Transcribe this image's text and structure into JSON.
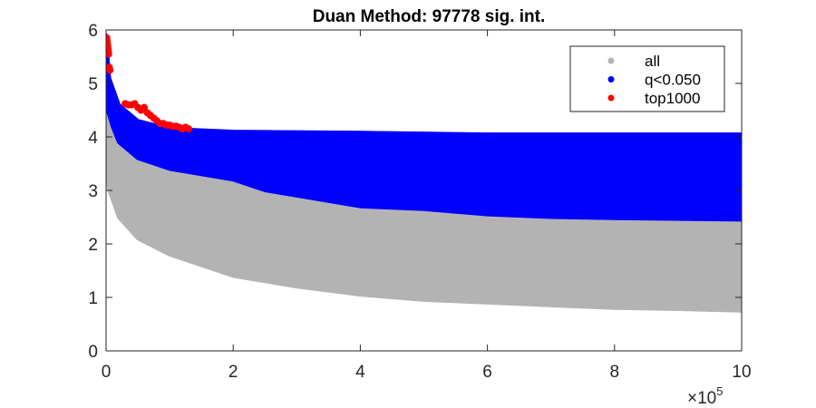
{
  "chart_data": {
    "type": "scatter",
    "title": "Duan Method: 97778 sig. int.",
    "xlabel": "",
    "ylabel": "",
    "xlim": [
      0,
      1000000
    ],
    "ylim": [
      0,
      6
    ],
    "x_ticks": [
      0,
      200000,
      400000,
      600000,
      800000,
      1000000
    ],
    "x_tick_labels": [
      "0",
      "2",
      "4",
      "6",
      "8",
      "10"
    ],
    "x_exponent_label": "×10",
    "x_exponent": "5",
    "y_ticks": [
      0,
      1,
      2,
      3,
      4,
      5,
      6
    ],
    "y_tick_labels": [
      "0",
      "1",
      "2",
      "3",
      "4",
      "5",
      "6"
    ],
    "grid": false,
    "legend_position": "top-right",
    "series": [
      {
        "name": "all",
        "color": "#b3b3b3",
        "upper_envelope": [
          [
            0,
            5.9
          ],
          [
            5000,
            5.1
          ],
          [
            20000,
            4.6
          ],
          [
            50000,
            4.3
          ],
          [
            100000,
            4.15
          ],
          [
            200000,
            4.1
          ],
          [
            400000,
            4.08
          ],
          [
            600000,
            4.05
          ],
          [
            800000,
            4.05
          ],
          [
            1000000,
            4.05
          ]
        ],
        "lower_envelope": [
          [
            0,
            3.3
          ],
          [
            5000,
            3.0
          ],
          [
            20000,
            2.5
          ],
          [
            50000,
            2.1
          ],
          [
            100000,
            1.8
          ],
          [
            150000,
            1.6
          ],
          [
            200000,
            1.4
          ],
          [
            300000,
            1.2
          ],
          [
            400000,
            1.05
          ],
          [
            500000,
            0.95
          ],
          [
            600000,
            0.9
          ],
          [
            700000,
            0.85
          ],
          [
            800000,
            0.8
          ],
          [
            900000,
            0.78
          ],
          [
            1000000,
            0.75
          ]
        ]
      },
      {
        "name": "q<0.050",
        "color": "#0000ff",
        "upper_envelope": [
          [
            0,
            5.9
          ],
          [
            5000,
            5.1
          ],
          [
            20000,
            4.6
          ],
          [
            50000,
            4.3
          ],
          [
            100000,
            4.15
          ],
          [
            200000,
            4.1
          ],
          [
            400000,
            4.08
          ],
          [
            600000,
            4.05
          ],
          [
            800000,
            4.05
          ],
          [
            1000000,
            4.05
          ]
        ],
        "lower_envelope": [
          [
            0,
            4.6
          ],
          [
            10000,
            4.2
          ],
          [
            20000,
            3.9
          ],
          [
            50000,
            3.6
          ],
          [
            100000,
            3.4
          ],
          [
            150000,
            3.3
          ],
          [
            200000,
            3.2
          ],
          [
            250000,
            3.0
          ],
          [
            300000,
            2.9
          ],
          [
            400000,
            2.7
          ],
          [
            500000,
            2.65
          ],
          [
            600000,
            2.55
          ],
          [
            700000,
            2.5
          ],
          [
            800000,
            2.48
          ],
          [
            1000000,
            2.45
          ]
        ]
      },
      {
        "name": "top1000",
        "color": "#ff0000",
        "points": [
          [
            1000,
            5.85
          ],
          [
            1500,
            5.8
          ],
          [
            2000,
            5.75
          ],
          [
            2500,
            5.7
          ],
          [
            3000,
            5.65
          ],
          [
            3500,
            5.6
          ],
          [
            4000,
            5.55
          ],
          [
            5000,
            5.3
          ],
          [
            6000,
            5.25
          ],
          [
            30000,
            4.62
          ],
          [
            35000,
            4.6
          ],
          [
            40000,
            4.6
          ],
          [
            45000,
            4.62
          ],
          [
            50000,
            4.55
          ],
          [
            55000,
            4.5
          ],
          [
            60000,
            4.55
          ],
          [
            65000,
            4.45
          ],
          [
            70000,
            4.4
          ],
          [
            75000,
            4.35
          ],
          [
            80000,
            4.3
          ],
          [
            85000,
            4.25
          ],
          [
            90000,
            4.25
          ],
          [
            95000,
            4.22
          ],
          [
            100000,
            4.22
          ],
          [
            105000,
            4.2
          ],
          [
            110000,
            4.2
          ],
          [
            115000,
            4.18
          ],
          [
            120000,
            4.15
          ],
          [
            125000,
            4.18
          ],
          [
            130000,
            4.15
          ]
        ]
      }
    ]
  }
}
